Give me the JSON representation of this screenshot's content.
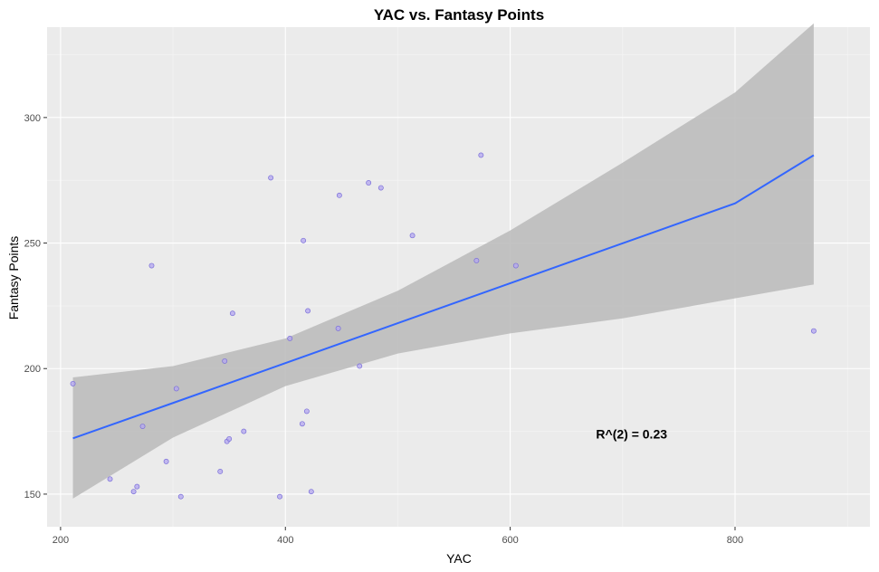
{
  "chart_data": {
    "type": "scatter",
    "title": "YAC vs. Fantasy Points",
    "xlabel": "YAC",
    "ylabel": "Fantasy Points",
    "xlim": [
      188,
      920
    ],
    "ylim": [
      137,
      336
    ],
    "x_ticks": [
      200,
      400,
      600,
      800
    ],
    "y_ticks": [
      150,
      200,
      250,
      300
    ],
    "x_tick_labels": [
      "200",
      "400",
      "600",
      "800"
    ],
    "y_tick_labels": [
      "150",
      "200",
      "250",
      "300"
    ],
    "grid": true,
    "colors": {
      "panel": "#ebebeb",
      "grid_major": "#ffffff",
      "point_fill": "#b3a6f0",
      "point_stroke": "#7a6fd8",
      "fit_line": "#3366ff",
      "ribbon": "#bdbdbd"
    },
    "points": [
      {
        "x": 211,
        "y": 194
      },
      {
        "x": 244,
        "y": 156
      },
      {
        "x": 265,
        "y": 151
      },
      {
        "x": 268,
        "y": 153
      },
      {
        "x": 273,
        "y": 177
      },
      {
        "x": 281,
        "y": 241
      },
      {
        "x": 294,
        "y": 163
      },
      {
        "x": 303,
        "y": 192
      },
      {
        "x": 307,
        "y": 149
      },
      {
        "x": 342,
        "y": 159
      },
      {
        "x": 346,
        "y": 203
      },
      {
        "x": 348,
        "y": 171
      },
      {
        "x": 350,
        "y": 172
      },
      {
        "x": 353,
        "y": 222
      },
      {
        "x": 363,
        "y": 175
      },
      {
        "x": 387,
        "y": 276
      },
      {
        "x": 395,
        "y": 149
      },
      {
        "x": 404,
        "y": 212
      },
      {
        "x": 415,
        "y": 178
      },
      {
        "x": 416,
        "y": 251
      },
      {
        "x": 419,
        "y": 183
      },
      {
        "x": 420,
        "y": 223
      },
      {
        "x": 423,
        "y": 151
      },
      {
        "x": 447,
        "y": 216
      },
      {
        "x": 448,
        "y": 269
      },
      {
        "x": 466,
        "y": 201
      },
      {
        "x": 474,
        "y": 274
      },
      {
        "x": 485,
        "y": 272
      },
      {
        "x": 513,
        "y": 253
      },
      {
        "x": 570,
        "y": 243
      },
      {
        "x": 574,
        "y": 285
      },
      {
        "x": 605,
        "y": 241
      },
      {
        "x": 870,
        "y": 215
      }
    ],
    "fit": {
      "x": [
        211,
        300,
        400,
        500,
        600,
        700,
        800,
        870
      ],
      "y": [
        172.2,
        186.3,
        202.2,
        218.1,
        234.0,
        249.9,
        265.8,
        285.0
      ],
      "lower": [
        148.2,
        172.5,
        193.0,
        206.0,
        214.0,
        220.0,
        228.0,
        233.5
      ],
      "upper": [
        196.5,
        201.0,
        212.0,
        231.0,
        255.0,
        282.0,
        310.0,
        337.5
      ]
    },
    "annotations": [
      {
        "text": "R^(2) = 0.23",
        "x": 708,
        "y": 174
      }
    ]
  }
}
